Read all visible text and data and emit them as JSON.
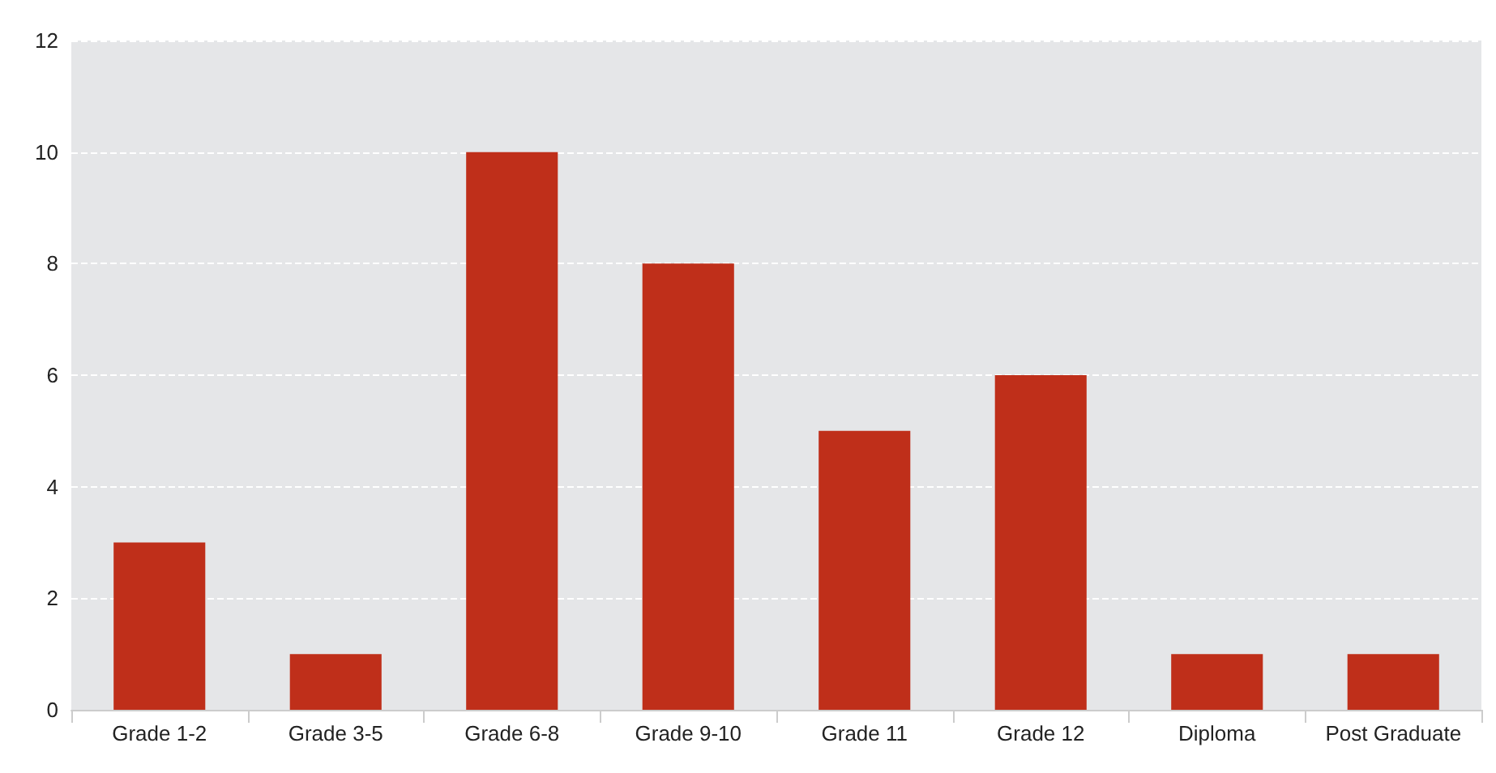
{
  "chart_data": {
    "type": "bar",
    "categories": [
      "Grade 1-2",
      "Grade 3-5",
      "Grade 6-8",
      "Grade 9-10",
      "Grade 11",
      "Grade 12",
      "Diploma",
      "Post Graduate"
    ],
    "values": [
      3,
      1,
      10,
      8,
      5,
      6,
      1,
      1
    ],
    "color": "#bf2f1a",
    "ylim": [
      0,
      12
    ],
    "yticks": [
      0,
      2,
      4,
      6,
      8,
      10,
      12
    ],
    "grid": "y"
  }
}
